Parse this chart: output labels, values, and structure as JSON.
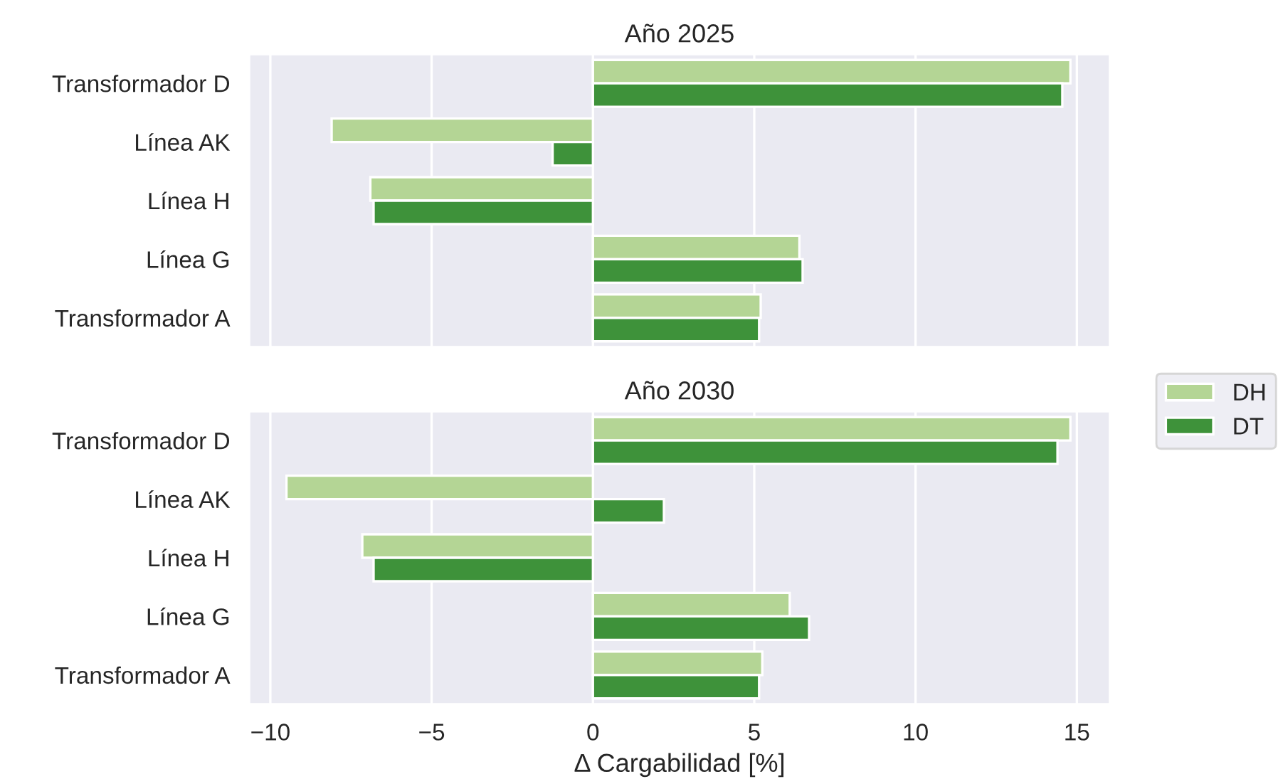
{
  "chart_data": [
    {
      "type": "bar",
      "orientation": "horizontal",
      "title": "Año 2025",
      "categories": [
        "Transformador D",
        "Línea AK",
        "Línea H",
        "Línea G",
        "Transformador A"
      ],
      "series": [
        {
          "color": "#b4d595",
          "values": [
            14.8,
            -8.1,
            -6.9,
            6.4,
            5.2
          ]
        },
        {
          "color": "#3e923a",
          "values": [
            14.55,
            -1.25,
            -6.8,
            6.5,
            5.15
          ]
        }
      ],
      "xlim": [
        -10.66,
        16.03
      ],
      "grid": "x",
      "tick_labels": "y"
    },
    {
      "type": "bar",
      "orientation": "horizontal",
      "title": "Año 2030",
      "categories": [
        "Transformador D",
        "Línea AK",
        "Línea H",
        "Línea G",
        "Transformador A"
      ],
      "series": [
        {
          "name": "DH",
          "color": "#b4d595",
          "values": [
            14.8,
            -9.5,
            -7.15,
            6.1,
            5.25
          ]
        },
        {
          "name": "DT",
          "color": "#3e923a",
          "values": [
            14.4,
            2.2,
            -6.8,
            6.7,
            5.15
          ]
        }
      ],
      "xlim": [
        -10.66,
        16.03
      ],
      "xticks": [
        {
          "value": -10,
          "label": "−10"
        },
        {
          "value": -5,
          "label": "−5"
        },
        0,
        5,
        10,
        15
      ],
      "xlabel": "Δ Cargabilidad [%]",
      "grid": "x",
      "legend": "right"
    }
  ]
}
